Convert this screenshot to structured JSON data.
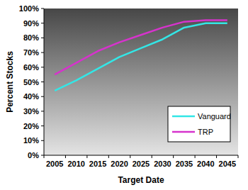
{
  "chart_data": {
    "type": "line",
    "x_label": "Target Date",
    "y_label": "Percent Stocks",
    "categories": [
      "2005",
      "2010",
      "2015",
      "2020",
      "2025",
      "2030",
      "2035",
      "2040",
      "2045"
    ],
    "series": [
      {
        "name": "Vanguard",
        "color": "#33e6e6",
        "values": [
          44,
          51,
          59,
          67,
          73,
          79,
          87,
          90,
          90
        ]
      },
      {
        "name": "TRP",
        "color": "#d633cc",
        "values": [
          55,
          63,
          71,
          77,
          82,
          87,
          91,
          92,
          92
        ]
      }
    ],
    "ylim": [
      0,
      100
    ],
    "yticks": [
      {
        "value": 0,
        "label": "0%"
      },
      {
        "value": 10,
        "label": "10%"
      },
      {
        "value": 20,
        "label": "20%"
      },
      {
        "value": 30,
        "label": "30%"
      },
      {
        "value": 40,
        "label": "40%"
      },
      {
        "value": 50,
        "label": "50%"
      },
      {
        "value": 60,
        "label": "60%"
      },
      {
        "value": 70,
        "label": "70%"
      },
      {
        "value": 80,
        "label": "80%"
      },
      {
        "value": 90,
        "label": "90%"
      },
      {
        "value": 100,
        "label": "100%"
      }
    ],
    "grid": false,
    "legend": "bottom-right"
  }
}
